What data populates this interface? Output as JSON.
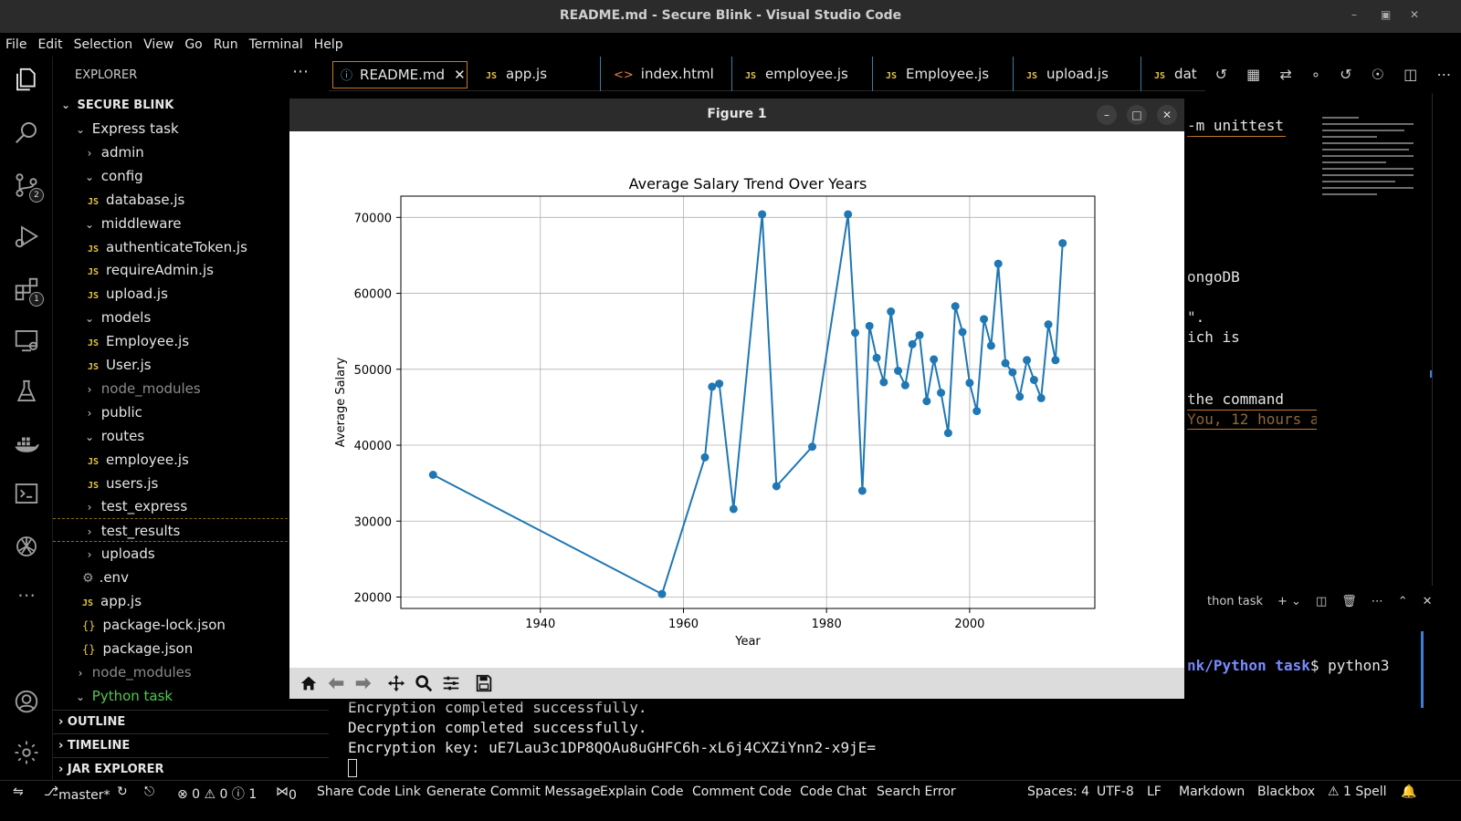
{
  "window": {
    "title": "README.md - Secure Blink - Visual Studio Code"
  },
  "menu": [
    "File",
    "Edit",
    "Selection",
    "View",
    "Go",
    "Run",
    "Terminal",
    "Help"
  ],
  "activity": {
    "scm_badge": "2",
    "extensions_badge": "1"
  },
  "explorer": {
    "header": "EXPLORER",
    "root": "SECURE BLINK",
    "tree": [
      {
        "label": "Express task",
        "indent": 1,
        "kind": "folder-open"
      },
      {
        "label": "admin",
        "indent": 2,
        "kind": "folder"
      },
      {
        "label": "config",
        "indent": 2,
        "kind": "folder-open"
      },
      {
        "label": "database.js",
        "indent": 3,
        "kind": "js"
      },
      {
        "label": "middleware",
        "indent": 2,
        "kind": "folder-open"
      },
      {
        "label": "authenticateToken.js",
        "indent": 3,
        "kind": "js"
      },
      {
        "label": "requireAdmin.js",
        "indent": 3,
        "kind": "js"
      },
      {
        "label": "upload.js",
        "indent": 3,
        "kind": "js"
      },
      {
        "label": "models",
        "indent": 2,
        "kind": "folder-open"
      },
      {
        "label": "Employee.js",
        "indent": 3,
        "kind": "js"
      },
      {
        "label": "User.js",
        "indent": 3,
        "kind": "js"
      },
      {
        "label": "node_modules",
        "indent": 2,
        "kind": "folder-dim"
      },
      {
        "label": "public",
        "indent": 2,
        "kind": "folder"
      },
      {
        "label": "routes",
        "indent": 2,
        "kind": "folder-open"
      },
      {
        "label": "employee.js",
        "indent": 3,
        "kind": "js"
      },
      {
        "label": "users.js",
        "indent": 3,
        "kind": "js"
      },
      {
        "label": "test_express",
        "indent": 2,
        "kind": "folder"
      },
      {
        "label": "test_results",
        "indent": 2,
        "kind": "folder-focused"
      },
      {
        "label": "uploads",
        "indent": 2,
        "kind": "folder"
      },
      {
        "label": ".env",
        "indent": 2,
        "kind": "gear"
      },
      {
        "label": "app.js",
        "indent": 2,
        "kind": "js"
      },
      {
        "label": "package-lock.json",
        "indent": 2,
        "kind": "json"
      },
      {
        "label": "package.json",
        "indent": 2,
        "kind": "json"
      },
      {
        "label": "node_modules",
        "indent": 1,
        "kind": "folder-dim"
      },
      {
        "label": "Python task",
        "indent": 1,
        "kind": "folder-green"
      }
    ],
    "sections": [
      "OUTLINE",
      "TIMELINE",
      "JAR EXPLORER"
    ]
  },
  "tabs": [
    {
      "label": "README.md",
      "kind": "info",
      "active": true
    },
    {
      "label": "app.js",
      "kind": "js"
    },
    {
      "label": "index.html",
      "kind": "html"
    },
    {
      "label": "employee.js",
      "kind": "js"
    },
    {
      "label": "Employee.js",
      "kind": "js"
    },
    {
      "label": "upload.js",
      "kind": "js"
    },
    {
      "label": "dat",
      "kind": "js"
    }
  ],
  "editor": {
    "line_unittest": "-m unittest",
    "line_mongodb": "ongoDB",
    "line_quote": "\".",
    "line_which": "ich is",
    "line_command": "the command",
    "blame": "You, 12 hours a"
  },
  "panel": {
    "terminal_name": "thon task",
    "prompt_path": "nk/Python task",
    "prompt_cmd": "$ python3",
    "output": [
      "Encryption completed successfully.",
      "Decryption completed successfully.",
      "Encryption key: uE7Lau3c1DP8QOAu8uGHFC6h-xL6j4CXZiYnn2-x9jE="
    ]
  },
  "figure": {
    "title": "Figure 1"
  },
  "chart_data": {
    "type": "line",
    "title": "Average Salary Trend Over Years",
    "xlabel": "Year",
    "ylabel": "Average Salary",
    "xlim": [
      1920.5,
      2017.5
    ],
    "ylim": [
      18500,
      72800
    ],
    "xticks": [
      1940,
      1960,
      1980,
      2000
    ],
    "yticks": [
      20000,
      30000,
      40000,
      50000,
      60000,
      70000
    ],
    "grid": true,
    "color": "#1f77b4",
    "x": [
      1925,
      1957,
      1963,
      1964,
      1965,
      1967,
      1971,
      1973,
      1978,
      1983,
      1984,
      1985,
      1986,
      1987,
      1988,
      1989,
      1990,
      1991,
      1992,
      1993,
      1994,
      1995,
      1996,
      1997,
      1998,
      1999,
      2000,
      2001,
      2002,
      2003,
      2004,
      2005,
      2006,
      2007,
      2008,
      2009,
      2010,
      2011,
      2012,
      2013
    ],
    "y": [
      36100,
      20400,
      38400,
      47700,
      48100,
      31600,
      70400,
      34600,
      39800,
      70400,
      54800,
      34000,
      55700,
      51500,
      48300,
      57600,
      49800,
      47900,
      53300,
      54500,
      45800,
      51300,
      46900,
      41600,
      58300,
      54900,
      48200,
      44500,
      56600,
      53100,
      63900,
      50800,
      49600,
      46400,
      51200,
      48600,
      46200,
      55900,
      51200,
      66600
    ]
  },
  "statusbar": {
    "branch": "master*",
    "problems": "⊗ 0 ⚠ 0 ⓘ 1",
    "ports": "0",
    "items": [
      "Share Code Link",
      "Generate Commit Message",
      "Explain Code",
      "Comment Code",
      "Code Chat",
      "Search Error"
    ],
    "spaces": "Spaces: 4",
    "encoding": "UTF-8",
    "eol": "LF",
    "language": "Markdown",
    "blackbox": "Blackbox",
    "spell": "⚠ 1 Spell"
  },
  "colors": {
    "accent_tab_border": "#c7772d",
    "tab_separator": "#3a7fa5",
    "js_icon": "#e7c547",
    "python_task": "#4ec94e"
  }
}
